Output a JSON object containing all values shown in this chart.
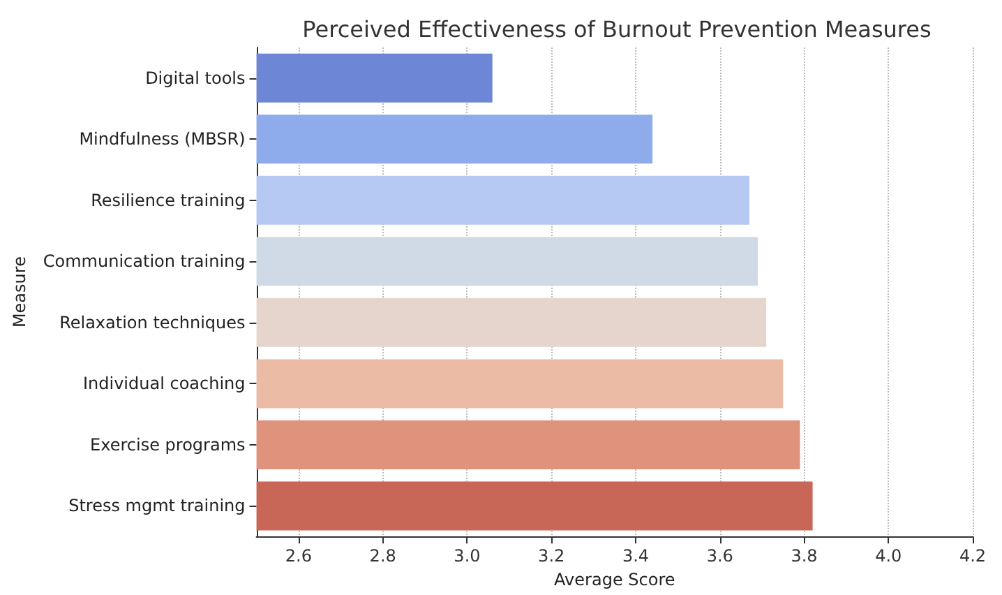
{
  "chart_data": {
    "type": "bar",
    "orientation": "horizontal",
    "title": "Perceived Effectiveness of Burnout Prevention Measures",
    "xlabel": "Average Score",
    "ylabel": "Measure",
    "categories": [
      "Digital tools",
      "Mindfulness (MBSR)",
      "Resilience training",
      "Communication training",
      "Relaxation techniques",
      "Individual coaching",
      "Exercise programs",
      "Stress mgmt training"
    ],
    "values": [
      3.06,
      3.44,
      3.67,
      3.69,
      3.71,
      3.75,
      3.79,
      3.82
    ],
    "colors": [
      "#6e86d6",
      "#8eabec",
      "#b5c9f2",
      "#d0dae7",
      "#e6d5cc",
      "#ebbba5",
      "#e0937c",
      "#c86658"
    ],
    "xlim": [
      2.5,
      4.2
    ],
    "xticks": [
      2.6,
      2.8,
      {
        "value": 3,
        "label": "3.0"
      },
      3.2,
      3.4,
      3.6,
      3.8,
      {
        "value": 4,
        "label": "4.0"
      },
      4.2
    ],
    "grid": "x"
  }
}
